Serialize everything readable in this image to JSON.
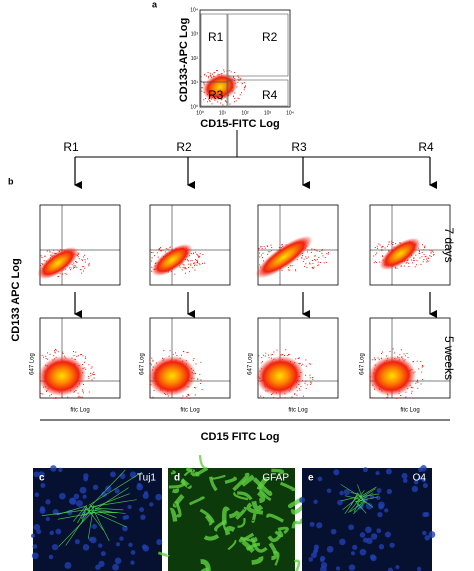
{
  "panel_a": {
    "label": "a",
    "y_axis": "CD133-APC Log",
    "x_axis": "CD15-FITC Log",
    "regions": [
      "R1",
      "R2",
      "R3",
      "R4"
    ],
    "ticks": [
      "10⁰",
      "10¹",
      "10²",
      "10³",
      "10⁴"
    ]
  },
  "panel_b": {
    "label": "b",
    "branches": [
      "R1",
      "R2",
      "R3",
      "R4"
    ],
    "rows": [
      "7 days",
      "5 weeks"
    ],
    "y_axis": "CD133 APC Log",
    "x_axis": "CD15 FITC Log",
    "small_y_axis": "647 Log",
    "small_x_axis": "fitc Log"
  },
  "micrographs": [
    {
      "label": "c",
      "marker": "Tuj1"
    },
    {
      "label": "d",
      "marker": "GFAP"
    },
    {
      "label": "e",
      "marker": "O4"
    }
  ]
}
